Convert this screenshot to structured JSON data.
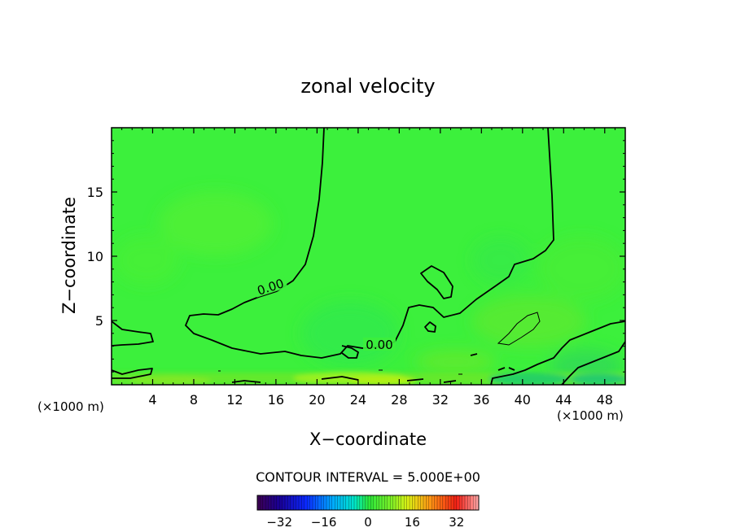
{
  "chart_data": {
    "type": "heatmap",
    "title": "zonal velocity",
    "xlabel": "X−coordinate",
    "ylabel": "Z−coordinate",
    "x_unit_left": "(×1000 m)",
    "x_unit_right": "(×1000 m)",
    "xlim": [
      0,
      50
    ],
    "ylim": [
      0,
      20
    ],
    "x_ticks": [
      4,
      8,
      12,
      16,
      20,
      24,
      28,
      32,
      36,
      40,
      44,
      48
    ],
    "y_ticks": [
      5,
      10,
      15
    ],
    "contour_interval_text": "CONTOUR INTERVAL = 5.000E+00",
    "contour_labels": [
      {
        "text": "0.00",
        "x": 15.5,
        "z": 7.3
      },
      {
        "text": "0.00",
        "x": 26.2,
        "z": 3.0
      }
    ],
    "colorbar": {
      "range": [
        -40,
        40
      ],
      "ticks": [
        -32,
        -16,
        0,
        16,
        32
      ],
      "tick_labels": [
        "−32",
        "−16",
        "0",
        "16",
        "32"
      ]
    },
    "colors": {
      "field_base": "#3cf03c",
      "contour": "#000000"
    }
  }
}
